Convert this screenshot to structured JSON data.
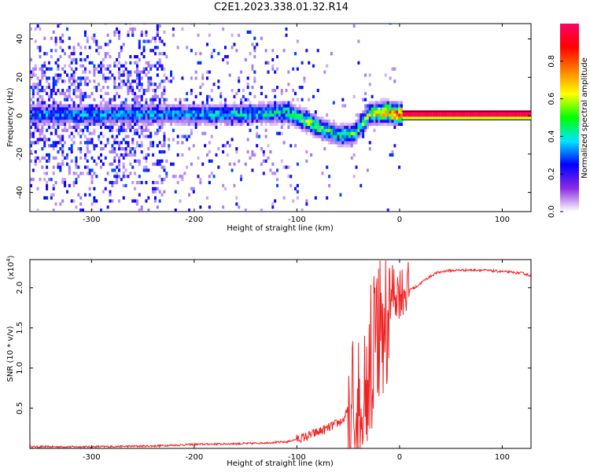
{
  "title": "C2E1.2023.338.01.32.R14",
  "chart_data": [
    {
      "type": "heatmap",
      "xlabel": "Height of straight line (km)",
      "ylabel": "Frequency (Hz)",
      "xlim": [
        -360,
        128
      ],
      "ylim": [
        -50,
        48
      ],
      "xticks": [
        -300,
        -200,
        -100,
        0,
        100
      ],
      "yticks": [
        -40,
        -20,
        0,
        20,
        40
      ],
      "colorbar": {
        "label": "Normalized spectral amplitude",
        "range": [
          0,
          1
        ],
        "ticks": [
          0.0,
          0.2,
          0.4,
          0.6,
          0.8
        ],
        "colors": [
          "#ffffff",
          "#8a2be2",
          "#0000ff",
          "#00e5ff",
          "#00ff00",
          "#ffff00",
          "#ff8000",
          "#ff0000",
          "#ff0066"
        ]
      },
      "ridge": {
        "description_points_x": [
          -360,
          -250,
          -150,
          -110,
          -90,
          -75,
          -60,
          -45,
          -30,
          -15,
          0,
          128
        ],
        "frequency_hz": [
          0,
          0,
          0,
          1,
          -4,
          -8,
          -11,
          -10,
          0,
          1,
          0,
          0
        ],
        "amplitude": [
          0.35,
          0.35,
          0.4,
          0.45,
          0.55,
          0.5,
          0.45,
          0.5,
          0.6,
          0.8,
          0.95,
          1.0
        ]
      }
    },
    {
      "type": "line",
      "xlabel": "Height of straight line (km)",
      "ylabel": "SNR (10 * v/v)",
      "yexponent": "(x10",
      "yexponent_power": "4",
      "exponent_suffix": ")",
      "xlim": [
        -360,
        128
      ],
      "ylim": [
        0,
        2.35
      ],
      "xticks": [
        -300,
        -200,
        -100,
        0,
        100
      ],
      "yticks": [
        0.5,
        1.0,
        1.5,
        2.0
      ],
      "ytick_labels": [
        "0.5",
        "1.0",
        "1.5",
        "2.0"
      ],
      "series": [
        {
          "color": "#ee2222",
          "x": [
            -360,
            -300,
            -240,
            -200,
            -150,
            -110,
            -90,
            -70,
            -55,
            -45,
            -35,
            -25,
            -18,
            -12,
            -5,
            5,
            15,
            25,
            35,
            45,
            60,
            80,
            100,
            120,
            128
          ],
          "y": [
            0.02,
            0.02,
            0.03,
            0.05,
            0.06,
            0.08,
            0.15,
            0.25,
            0.35,
            0.6,
            1.0,
            1.4,
            1.75,
            1.9,
            1.95,
            1.97,
            2.0,
            2.1,
            2.18,
            2.21,
            2.22,
            2.22,
            2.2,
            2.18,
            2.15
          ]
        }
      ]
    }
  ]
}
